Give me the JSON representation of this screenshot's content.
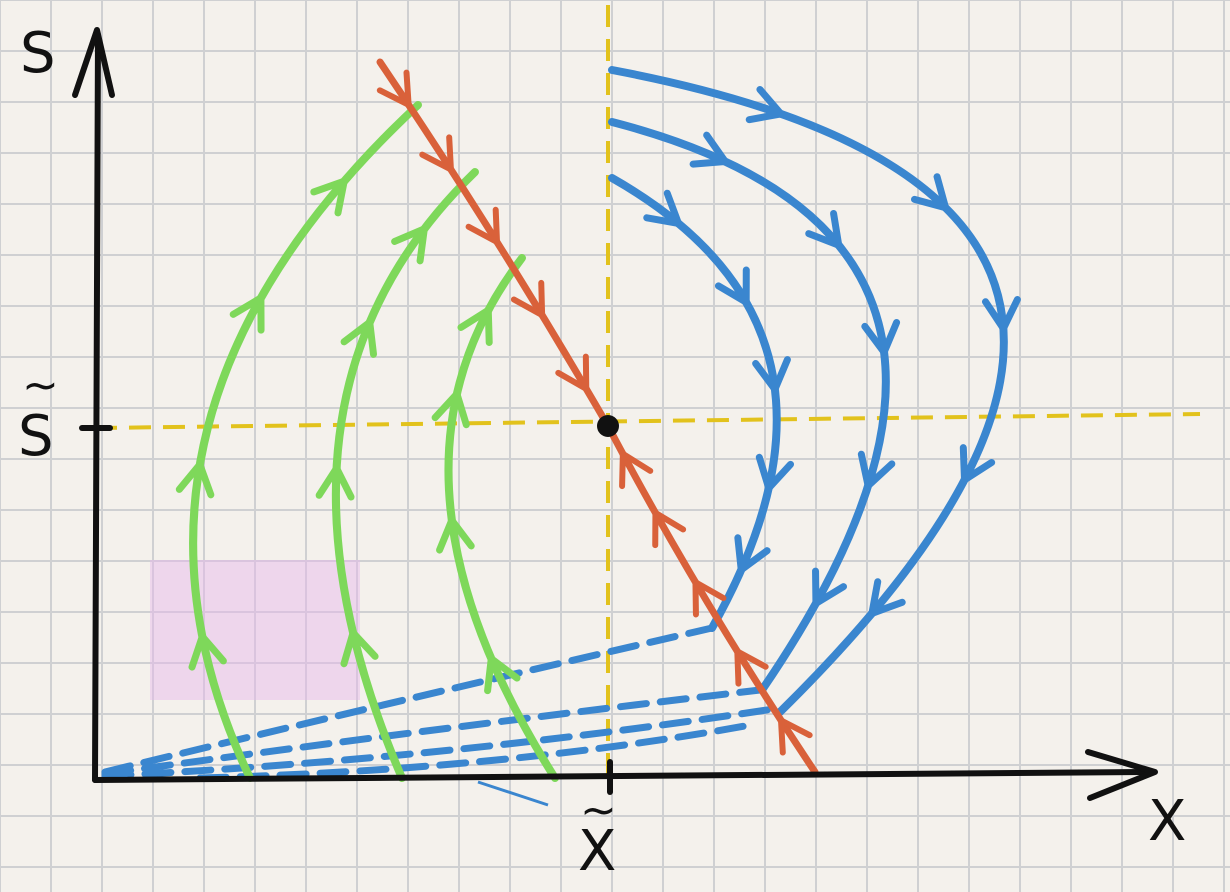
{
  "labels": {
    "y_axis": "S",
    "x_axis": "X",
    "s_eq": "S",
    "x_eq": "X",
    "tilde": "~"
  },
  "colors": {
    "paper": "#f4f1ec",
    "grid": "#cfd0d2",
    "axis": "#111111",
    "nullcline": "#e2c21c",
    "separatrix": "#d9613a",
    "green_flow": "#7ed85a",
    "blue_flow": "#3a86cf",
    "pink_shade": "#e7b6ee"
  },
  "icons": {
    "equilibrium": "filled-dot",
    "flow": "arrowheads"
  }
}
